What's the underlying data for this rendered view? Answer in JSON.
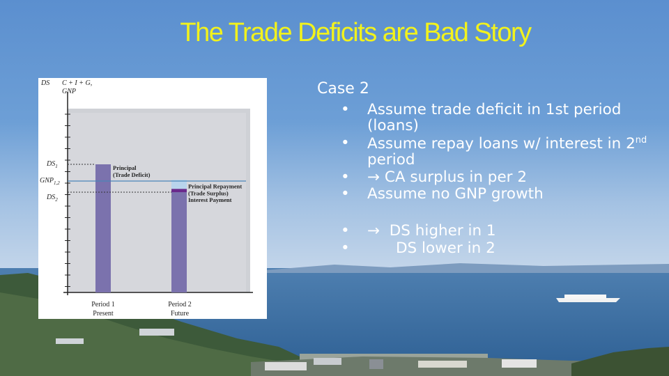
{
  "title": "The Trade Deficits are Bad Story",
  "case_heading": "Case 2",
  "bullets": [
    {
      "text": "Assume trade deficit in 1st period (loans)"
    },
    {
      "pre": "Assume repay loans w/ interest in 2",
      "sup": "nd",
      "post": " period"
    },
    {
      "arrow": "→",
      "text": "CA surplus in per 2"
    },
    {
      "text": "Assume no GNP growth"
    }
  ],
  "bullets2": [
    {
      "arrow": "→",
      "text": "DS higher in 1"
    },
    {
      "text": "DS lower in 2"
    }
  ],
  "bullet_glyph": "•",
  "chart": {
    "y_title_ds": "DS",
    "y_title_c": "C + I + G,",
    "y_title_gnp": "GNP",
    "ds1": "DS",
    "ds1_sub": "1",
    "gnp": "GNP",
    "gnp_sub": "1,2",
    "ds2": "DS",
    "ds2_sub": "2",
    "principal_1": "Principal",
    "principal_2": "(Trade Deficit)",
    "repay_1": "Principal Repayment",
    "repay_2": "(Trade Surplus)",
    "interest": "Interest Payment",
    "period1": "Period 1",
    "present": "Present",
    "period2": "Period 2",
    "future": "Future"
  },
  "chart_data": {
    "type": "bar",
    "categories": [
      "Period 1",
      "Period 2"
    ],
    "values": [
      1.15,
      0.9
    ],
    "reference_lines": {
      "GNP": 1.0
    },
    "period2_breakdown": {
      "principal_repayment": 0.08,
      "interest_payment": 0.03
    }
  },
  "colors": {
    "title": "#f2f21c",
    "bar": "#7b72ad",
    "interest": "#6a2a8c",
    "repayment": "#b9d4ec",
    "gnp_line": "#4a86b8",
    "text": "#ffffff"
  }
}
